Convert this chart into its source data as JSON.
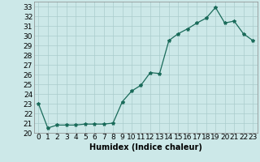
{
  "x": [
    0,
    1,
    2,
    3,
    4,
    5,
    6,
    7,
    8,
    9,
    10,
    11,
    12,
    13,
    14,
    15,
    16,
    17,
    18,
    19,
    20,
    21,
    22,
    23
  ],
  "y": [
    23,
    20.5,
    20.8,
    20.8,
    20.8,
    20.9,
    20.9,
    20.9,
    21.0,
    23.2,
    24.3,
    24.9,
    26.2,
    26.1,
    29.5,
    30.2,
    30.7,
    31.3,
    31.8,
    32.9,
    31.3,
    31.5,
    30.2,
    29.5
  ],
  "xlabel": "Humidex (Indice chaleur)",
  "ylim": [
    20,
    33.5
  ],
  "xlim": [
    -0.5,
    23.5
  ],
  "yticks": [
    20,
    21,
    22,
    23,
    24,
    25,
    26,
    27,
    28,
    29,
    30,
    31,
    32,
    33
  ],
  "xticks": [
    0,
    1,
    2,
    3,
    4,
    5,
    6,
    7,
    8,
    9,
    10,
    11,
    12,
    13,
    14,
    15,
    16,
    17,
    18,
    19,
    20,
    21,
    22,
    23
  ],
  "line_color": "#1a6b5a",
  "marker": "*",
  "bg_color": "#cce8e8",
  "grid_color": "#aacccc",
  "label_fontsize": 7,
  "tick_fontsize": 6.5
}
